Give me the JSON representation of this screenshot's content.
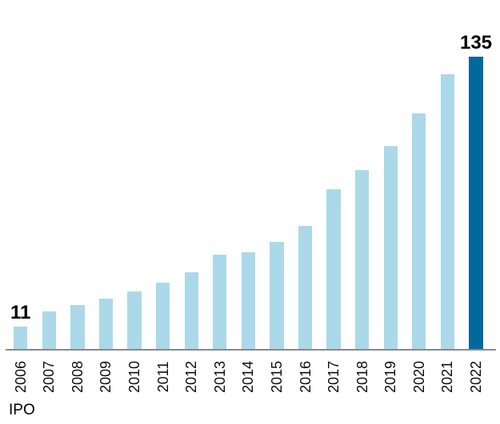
{
  "chart_data": {
    "type": "bar",
    "title": "",
    "categories": [
      "2006",
      "2007",
      "2008",
      "2009",
      "2010",
      "2011",
      "2012",
      "2013",
      "2014",
      "2015",
      "2016",
      "2017",
      "2018",
      "2019",
      "2020",
      "2021",
      "2022"
    ],
    "values": [
      11,
      18,
      21,
      24,
      27,
      31,
      36,
      44,
      45,
      50,
      57,
      74,
      83,
      94,
      109,
      127,
      135
    ],
    "data_labels": [
      {
        "index": 0,
        "text": "11"
      },
      {
        "index": 16,
        "text": "135"
      }
    ],
    "highlight_index": 16,
    "xlabel": "IPO",
    "ylabel": "",
    "ylim": [
      0,
      160
    ],
    "grid": false,
    "legend": "none",
    "colors": {
      "bar_default": "#abd9e9",
      "bar_highlight": "#01699b",
      "axis_line": "#88898c",
      "label_text": "#000000",
      "tick_text": "#0d0d0d"
    }
  }
}
